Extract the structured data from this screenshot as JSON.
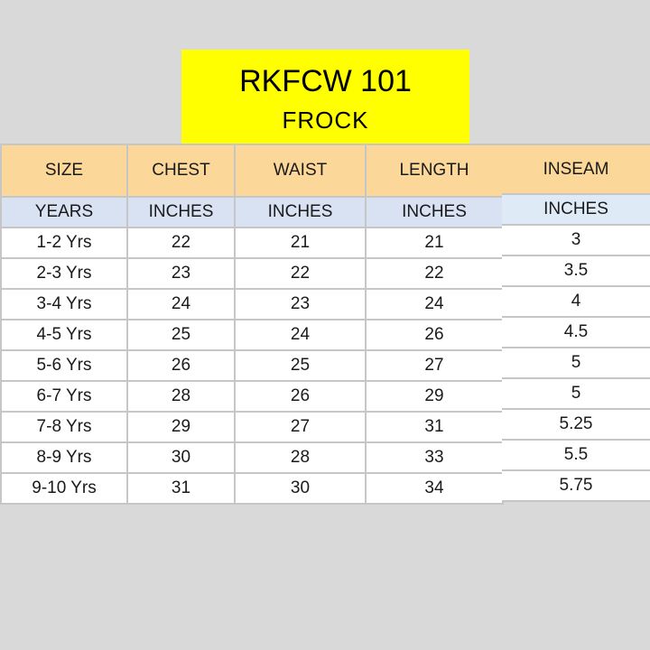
{
  "title": {
    "line1": "RKFCW 101",
    "line2": "FROCK"
  },
  "headers": [
    "SIZE",
    "CHEST",
    "WAIST",
    "LENGTH",
    "INSEAM"
  ],
  "units": [
    "YEARS",
    "INCHES",
    "INCHES",
    "INCHES",
    "INCHES"
  ],
  "rows": [
    [
      "1-2 Yrs",
      "22",
      "21",
      "21",
      "3"
    ],
    [
      "2-3 Yrs",
      "23",
      "22",
      "22",
      "3.5"
    ],
    [
      "3-4 Yrs",
      "24",
      "23",
      "24",
      "4"
    ],
    [
      "4-5 Yrs",
      "25",
      "24",
      "26",
      "4.5"
    ],
    [
      "5-6 Yrs",
      "26",
      "25",
      "27",
      "5"
    ],
    [
      "6-7 Yrs",
      "28",
      "26",
      "29",
      "5"
    ],
    [
      "7-8 Yrs",
      "29",
      "27",
      "31",
      "5.25"
    ],
    [
      "8-9 Yrs",
      "30",
      "28",
      "33",
      "5.5"
    ],
    [
      "9-10 Yrs",
      "31",
      "30",
      "34",
      "5.75"
    ]
  ],
  "colors": {
    "title_bg": "#ffff00",
    "header_bg": "#fbd899",
    "units_bg": "#d9e2f3",
    "page_bg": "#d9d9d9"
  }
}
